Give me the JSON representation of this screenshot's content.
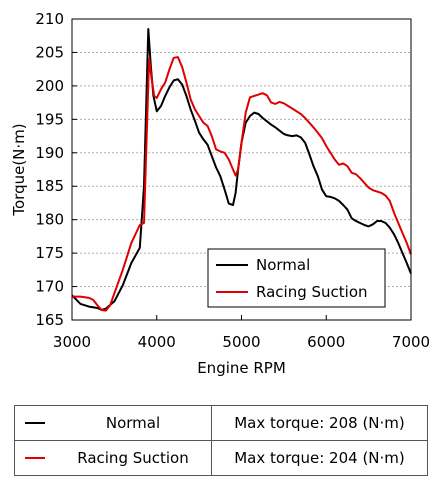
{
  "chart_data": {
    "type": "line",
    "xlabel": "Engine RPM",
    "ylabel": "Torque(N·m)",
    "xlim": [
      3000,
      7000
    ],
    "ylim": [
      165,
      210
    ],
    "xticks": [
      3000,
      4000,
      5000,
      6000,
      7000
    ],
    "yticks": [
      165,
      170,
      175,
      180,
      185,
      190,
      195,
      200,
      205,
      210
    ],
    "grid": "horizontal-dashed",
    "legend_position": "bottom-right",
    "series": [
      {
        "name": "Normal",
        "color": "#000000",
        "x": [
          3000,
          3100,
          3200,
          3300,
          3350,
          3400,
          3500,
          3600,
          3700,
          3800,
          3850,
          3900,
          3930,
          3960,
          4000,
          4050,
          4100,
          4150,
          4200,
          4250,
          4300,
          4350,
          4400,
          4450,
          4500,
          4550,
          4600,
          4650,
          4700,
          4750,
          4800,
          4850,
          4900,
          4930,
          4960,
          5000,
          5050,
          5100,
          5150,
          5200,
          5250,
          5300,
          5350,
          5400,
          5450,
          5500,
          5550,
          5600,
          5650,
          5700,
          5750,
          5800,
          5850,
          5900,
          5950,
          6000,
          6050,
          6100,
          6150,
          6200,
          6250,
          6300,
          6350,
          6400,
          6450,
          6500,
          6550,
          6600,
          6650,
          6700,
          6750,
          6800,
          6850,
          6900,
          6950,
          7000
        ],
        "y": [
          168.7,
          167.4,
          167.0,
          166.8,
          166.5,
          166.7,
          167.8,
          170.2,
          173.5,
          175.8,
          185.0,
          208.5,
          203.0,
          198.5,
          196.2,
          197.0,
          198.5,
          199.8,
          200.8,
          201.0,
          200.2,
          198.5,
          196.5,
          194.8,
          193.0,
          192.0,
          191.2,
          189.5,
          187.8,
          186.5,
          184.5,
          182.4,
          182.2,
          184.0,
          187.5,
          191.5,
          194.5,
          195.5,
          196.0,
          195.8,
          195.2,
          194.7,
          194.2,
          193.8,
          193.3,
          192.8,
          192.6,
          192.5,
          192.6,
          192.3,
          191.5,
          189.8,
          188.0,
          186.5,
          184.5,
          183.5,
          183.4,
          183.2,
          182.8,
          182.2,
          181.5,
          180.2,
          179.8,
          179.5,
          179.2,
          179.0,
          179.3,
          179.8,
          179.8,
          179.5,
          178.8,
          177.8,
          176.5,
          175.0,
          173.5,
          171.9
        ]
      },
      {
        "name": "Racing Suction",
        "color": "#e00000",
        "x": [
          3000,
          3100,
          3200,
          3250,
          3300,
          3350,
          3400,
          3450,
          3500,
          3600,
          3700,
          3800,
          3850,
          3880,
          3910,
          3940,
          3970,
          4000,
          4050,
          4100,
          4150,
          4200,
          4250,
          4300,
          4350,
          4400,
          4450,
          4500,
          4550,
          4600,
          4650,
          4700,
          4750,
          4800,
          4850,
          4900,
          4930,
          4960,
          5000,
          5050,
          5100,
          5150,
          5200,
          5250,
          5300,
          5350,
          5400,
          5450,
          5500,
          5550,
          5600,
          5650,
          5700,
          5750,
          5800,
          5850,
          5900,
          5950,
          6000,
          6050,
          6100,
          6150,
          6200,
          6250,
          6300,
          6350,
          6400,
          6450,
          6500,
          6550,
          6600,
          6650,
          6700,
          6750,
          6800,
          6850,
          6900,
          6950,
          7000
        ],
        "y": [
          168.5,
          168.5,
          168.3,
          168.0,
          167.2,
          166.5,
          166.4,
          167.2,
          169.0,
          172.5,
          176.5,
          179.2,
          179.5,
          192.0,
          204.0,
          201.0,
          198.5,
          198.2,
          199.5,
          200.5,
          202.5,
          204.2,
          204.3,
          202.8,
          200.5,
          198.0,
          196.5,
          195.5,
          194.5,
          194.0,
          192.5,
          190.5,
          190.2,
          190.0,
          189.0,
          187.5,
          186.6,
          187.5,
          191.5,
          196.0,
          198.3,
          198.5,
          198.7,
          198.9,
          198.6,
          197.5,
          197.3,
          197.6,
          197.4,
          197.0,
          196.6,
          196.2,
          195.8,
          195.2,
          194.5,
          193.8,
          193.0,
          192.2,
          191.0,
          190.0,
          189.0,
          188.2,
          188.4,
          188.0,
          187.0,
          186.8,
          186.2,
          185.5,
          184.8,
          184.4,
          184.2,
          184.0,
          183.6,
          182.8,
          181.0,
          179.5,
          178.0,
          176.5,
          174.8
        ]
      }
    ]
  },
  "summary_table": [
    {
      "series": "Normal",
      "color": "#000000",
      "text": "Max torque: 208 (N·m)"
    },
    {
      "series": "Racing Suction",
      "color": "#e00000",
      "text": "Max torque: 204 (N·m)"
    }
  ]
}
